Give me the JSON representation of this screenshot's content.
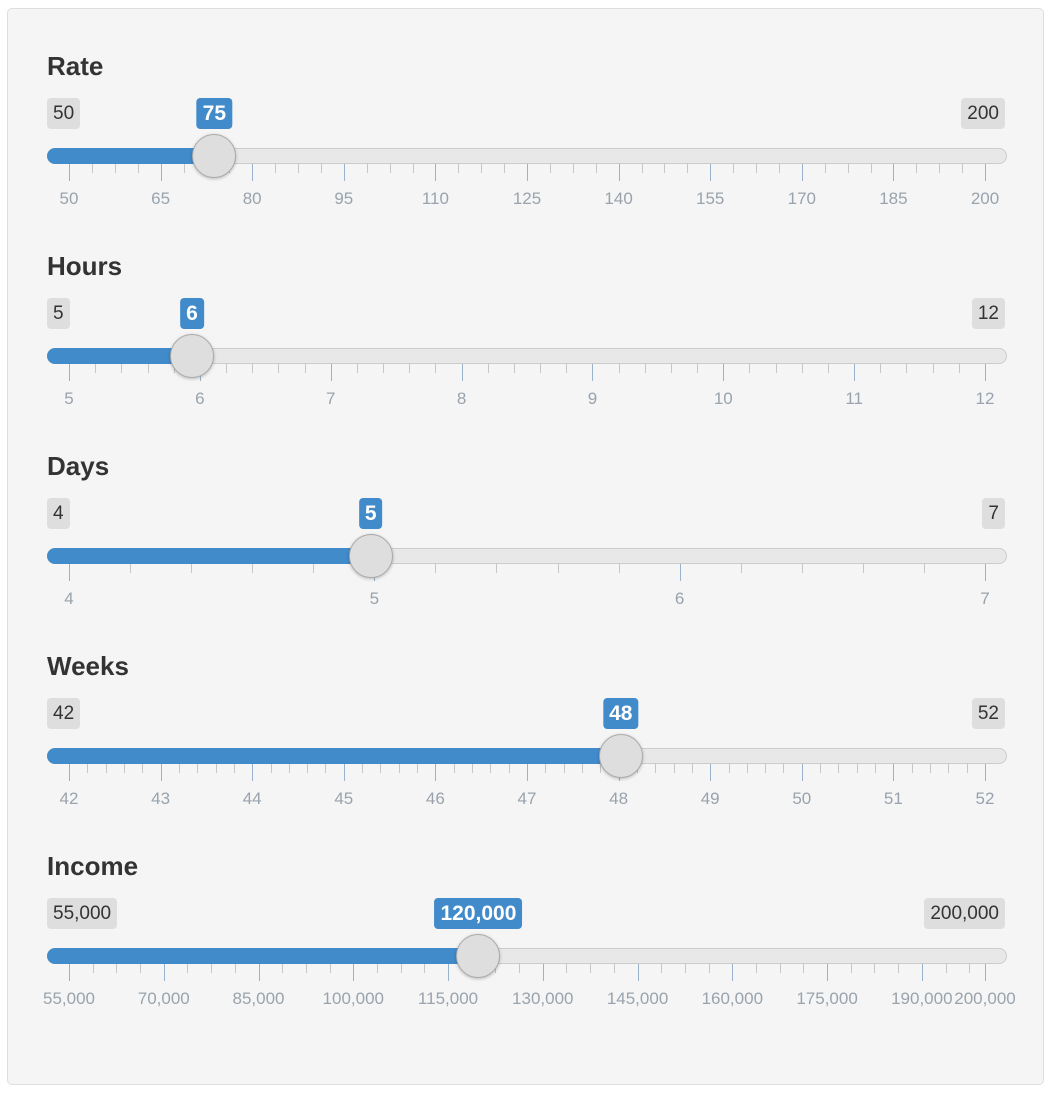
{
  "sliders": [
    {
      "id": "rate",
      "label": "Rate",
      "min": 50,
      "max": 200,
      "value": 75,
      "min_label": "50",
      "max_label": "200",
      "value_label": "75",
      "minor_per_major": 3,
      "tick_labels": [
        "50",
        "65",
        "80",
        "95",
        "110",
        "125",
        "140",
        "155",
        "170",
        "185",
        "200"
      ]
    },
    {
      "id": "hours",
      "label": "Hours",
      "min": 5,
      "max": 12,
      "value": 6,
      "min_label": "5",
      "max_label": "12",
      "value_label": "6",
      "minor_per_major": 4,
      "tick_labels": [
        "5",
        "6",
        "7",
        "8",
        "9",
        "10",
        "11",
        "12"
      ]
    },
    {
      "id": "days",
      "label": "Days",
      "min": 4,
      "max": 7,
      "value": 5,
      "min_label": "4",
      "max_label": "7",
      "value_label": "5",
      "minor_per_major": 4,
      "tick_labels": [
        "4",
        "5",
        "6",
        "7"
      ]
    },
    {
      "id": "weeks",
      "label": "Weeks",
      "min": 42,
      "max": 52,
      "value": 48,
      "min_label": "42",
      "max_label": "52",
      "value_label": "48",
      "minor_per_major": 4,
      "tick_labels": [
        "42",
        "43",
        "44",
        "45",
        "46",
        "47",
        "48",
        "49",
        "50",
        "51",
        "52"
      ]
    },
    {
      "id": "income",
      "label": "Income",
      "min": 55000,
      "max": 200000,
      "value": 120000,
      "min_label": "55,000",
      "max_label": "200,000",
      "value_label": "120,000",
      "minor_per_major": 3,
      "tick_labels": [
        "55,000",
        "70,000",
        "85,000",
        "100,000",
        "115,000",
        "130,000",
        "145,000",
        "160,000",
        "175,000",
        "190,000",
        "200,000"
      ]
    }
  ],
  "colors": {
    "accent": "#428bca",
    "track": "#e8e8e8",
    "handle": "#dedede",
    "panel": "#f5f5f5"
  }
}
